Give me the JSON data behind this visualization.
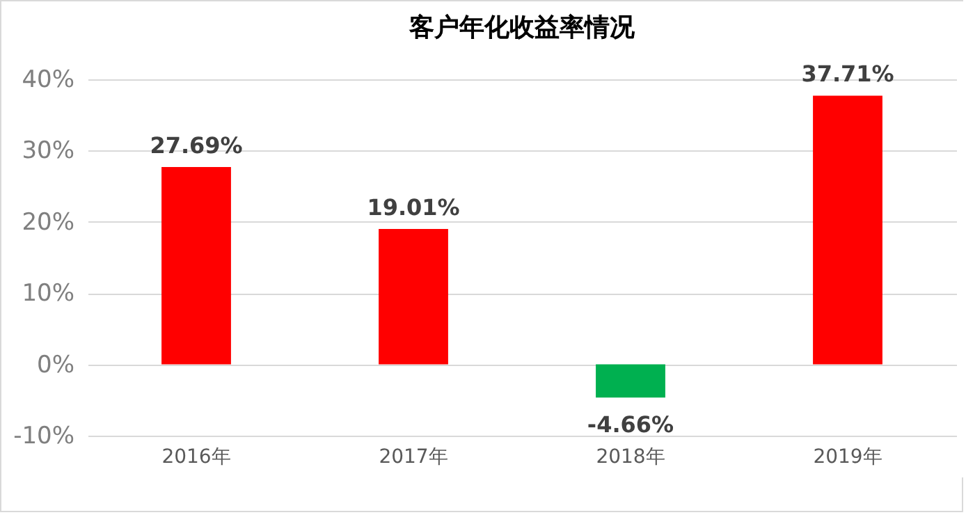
{
  "chart_data": {
    "type": "bar",
    "title": "客户年化收益率情况",
    "categories": [
      "2016年",
      "2017年",
      "2018年",
      "2019年"
    ],
    "values": [
      27.69,
      19.01,
      -4.66,
      37.71
    ],
    "colors": [
      "#ff0000",
      "#ff0000",
      "#00b050",
      "#ff0000"
    ],
    "value_labels": [
      "27.69%",
      "19.01%",
      "-4.66%",
      "37.71%"
    ],
    "ylim": [
      -10,
      40
    ],
    "yticks": [
      {
        "value": -10,
        "label": "-10%"
      },
      {
        "value": 0,
        "label": "0%"
      },
      {
        "value": 10,
        "label": "10%"
      },
      {
        "value": 20,
        "label": "20%"
      },
      {
        "value": 30,
        "label": "30%"
      },
      {
        "value": 40,
        "label": "40%"
      }
    ],
    "grid": "y"
  }
}
